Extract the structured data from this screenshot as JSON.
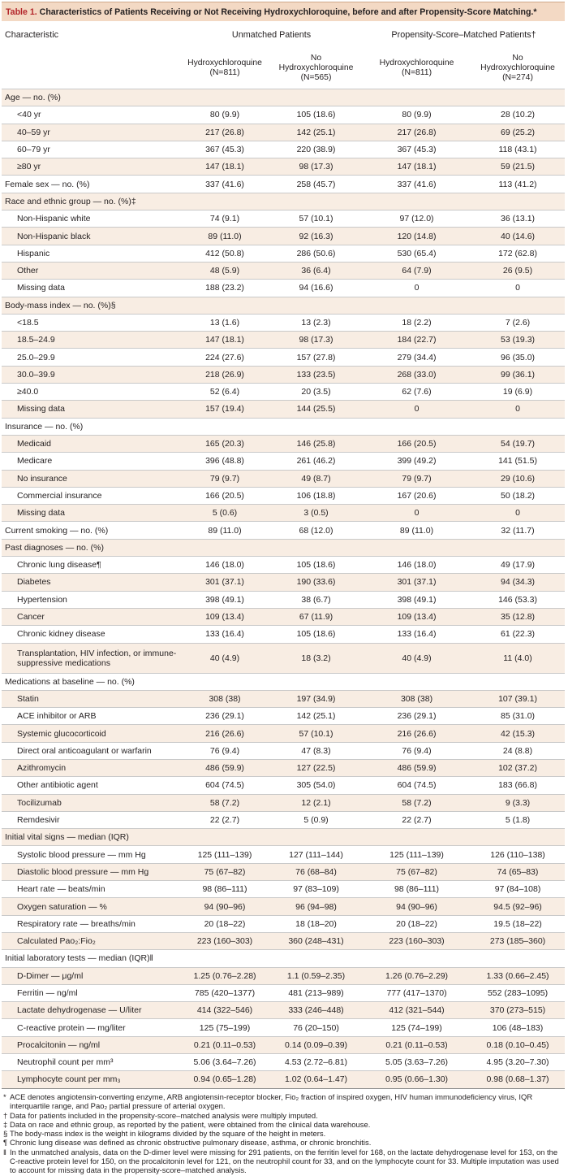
{
  "title": {
    "label": "Table 1.",
    "text": "Characteristics of Patients Receiving or Not Receiving Hydroxychloroquine, before and after Propensity-Score Matching.*"
  },
  "header": {
    "characteristic": "Characteristic",
    "unmatched": "Unmatched Patients",
    "matched": "Propensity-Score–Matched Patients†",
    "columns": [
      [
        "Hydroxychloroquine",
        "(N=811)"
      ],
      [
        "No",
        "Hydroxychloroquine",
        "(N=565)"
      ],
      [
        "Hydroxychloroquine",
        "(N=811)"
      ],
      [
        "No",
        "Hydroxychloroquine",
        "(N=274)"
      ]
    ]
  },
  "rows": [
    {
      "kind": "sec",
      "label": "Age — no. (%)",
      "values": [
        "",
        "",
        "",
        ""
      ]
    },
    {
      "kind": "item",
      "label": "<40 yr",
      "values": [
        "80 (9.9)",
        "105 (18.6)",
        "80 (9.9)",
        "28 (10.2)"
      ]
    },
    {
      "kind": "item",
      "label": "40–59 yr",
      "values": [
        "217 (26.8)",
        "142 (25.1)",
        "217 (26.8)",
        "69 (25.2)"
      ]
    },
    {
      "kind": "item",
      "label": "60–79 yr",
      "values": [
        "367 (45.3)",
        "220 (38.9)",
        "367 (45.3)",
        "118 (43.1)"
      ]
    },
    {
      "kind": "item",
      "label": "≥80 yr",
      "values": [
        "147 (18.1)",
        "98 (17.3)",
        "147 (18.1)",
        "59 (21.5)"
      ]
    },
    {
      "kind": "sec",
      "label": "Female sex — no. (%)",
      "values": [
        "337 (41.6)",
        "258 (45.7)",
        "337 (41.6)",
        "113 (41.2)"
      ]
    },
    {
      "kind": "sec",
      "label": "Race and ethnic group — no. (%)‡",
      "values": [
        "",
        "",
        "",
        ""
      ]
    },
    {
      "kind": "item",
      "label": "Non-Hispanic white",
      "values": [
        "74 (9.1)",
        "57 (10.1)",
        "97 (12.0)",
        "36 (13.1)"
      ]
    },
    {
      "kind": "item",
      "label": "Non-Hispanic black",
      "values": [
        "89 (11.0)",
        "92 (16.3)",
        "120 (14.8)",
        "40 (14.6)"
      ]
    },
    {
      "kind": "item",
      "label": "Hispanic",
      "values": [
        "412 (50.8)",
        "286 (50.6)",
        "530 (65.4)",
        "172 (62.8)"
      ]
    },
    {
      "kind": "item",
      "label": "Other",
      "values": [
        "48 (5.9)",
        "36 (6.4)",
        "64 (7.9)",
        "26 (9.5)"
      ]
    },
    {
      "kind": "item",
      "label": "Missing data",
      "values": [
        "188 (23.2)",
        "94 (16.6)",
        "0",
        "0"
      ]
    },
    {
      "kind": "sec",
      "label": "Body-mass index — no. (%)§",
      "values": [
        "",
        "",
        "",
        ""
      ]
    },
    {
      "kind": "item",
      "label": "<18.5",
      "values": [
        "13 (1.6)",
        "13 (2.3)",
        "18 (2.2)",
        "7 (2.6)"
      ]
    },
    {
      "kind": "item",
      "label": "18.5–24.9",
      "values": [
        "147 (18.1)",
        "98 (17.3)",
        "184 (22.7)",
        "53 (19.3)"
      ]
    },
    {
      "kind": "item",
      "label": "25.0–29.9",
      "values": [
        "224 (27.6)",
        "157 (27.8)",
        "279 (34.4)",
        "96 (35.0)"
      ]
    },
    {
      "kind": "item",
      "label": "30.0–39.9",
      "values": [
        "218 (26.9)",
        "133 (23.5)",
        "268 (33.0)",
        "99 (36.1)"
      ]
    },
    {
      "kind": "item",
      "label": "≥40.0",
      "values": [
        "52 (6.4)",
        "20 (3.5)",
        "62 (7.6)",
        "19 (6.9)"
      ]
    },
    {
      "kind": "item",
      "label": "Missing data",
      "values": [
        "157 (19.4)",
        "144 (25.5)",
        "0",
        "0"
      ]
    },
    {
      "kind": "sec",
      "label": "Insurance — no. (%)",
      "values": [
        "",
        "",
        "",
        ""
      ]
    },
    {
      "kind": "item",
      "label": "Medicaid",
      "values": [
        "165 (20.3)",
        "146 (25.8)",
        "166 (20.5)",
        "54 (19.7)"
      ]
    },
    {
      "kind": "item",
      "label": "Medicare",
      "values": [
        "396 (48.8)",
        "261 (46.2)",
        "399 (49.2)",
        "141 (51.5)"
      ]
    },
    {
      "kind": "item",
      "label": "No insurance",
      "values": [
        "79 (9.7)",
        "49 (8.7)",
        "79 (9.7)",
        "29 (10.6)"
      ]
    },
    {
      "kind": "item",
      "label": "Commercial insurance",
      "values": [
        "166 (20.5)",
        "106 (18.8)",
        "167 (20.6)",
        "50 (18.2)"
      ]
    },
    {
      "kind": "item",
      "label": "Missing data",
      "values": [
        "5 (0.6)",
        "3 (0.5)",
        "0",
        "0"
      ]
    },
    {
      "kind": "sec",
      "label": "Current smoking — no. (%)",
      "values": [
        "89 (11.0)",
        "68 (12.0)",
        "89 (11.0)",
        "32 (11.7)"
      ]
    },
    {
      "kind": "sec",
      "label": "Past diagnoses — no. (%)",
      "values": [
        "",
        "",
        "",
        ""
      ]
    },
    {
      "kind": "item",
      "label": "Chronic lung disease¶",
      "values": [
        "146 (18.0)",
        "105 (18.6)",
        "146 (18.0)",
        "49 (17.9)"
      ]
    },
    {
      "kind": "item",
      "label": "Diabetes",
      "values": [
        "301 (37.1)",
        "190 (33.6)",
        "301 (37.1)",
        "94 (34.3)"
      ]
    },
    {
      "kind": "item",
      "label": "Hypertension",
      "values": [
        "398 (49.1)",
        "38 (6.7)",
        "398 (49.1)",
        "146 (53.3)"
      ]
    },
    {
      "kind": "item",
      "label": "Cancer",
      "values": [
        "109 (13.4)",
        "67 (11.9)",
        "109 (13.4)",
        "35 (12.8)"
      ]
    },
    {
      "kind": "item",
      "label": "Chronic kidney disease",
      "values": [
        "133 (16.4)",
        "105 (18.6)",
        "133 (16.4)",
        "61 (22.3)"
      ]
    },
    {
      "kind": "item",
      "tall": true,
      "label": "Transplantation, HIV infection, or immune-suppressive medications",
      "values": [
        "40 (4.9)",
        "18 (3.2)",
        "40 (4.9)",
        "11 (4.0)"
      ]
    },
    {
      "kind": "sec",
      "label": "Medications at baseline — no. (%)",
      "values": [
        "",
        "",
        "",
        ""
      ]
    },
    {
      "kind": "item",
      "label": "Statin",
      "values": [
        "308 (38)",
        "197 (34.9)",
        "308 (38)",
        "107 (39.1)"
      ]
    },
    {
      "kind": "item",
      "label": "ACE inhibitor or ARB",
      "values": [
        "236 (29.1)",
        "142 (25.1)",
        "236 (29.1)",
        "85 (31.0)"
      ]
    },
    {
      "kind": "item",
      "label": "Systemic glucocorticoid",
      "values": [
        "216 (26.6)",
        "57 (10.1)",
        "216 (26.6)",
        "42 (15.3)"
      ]
    },
    {
      "kind": "item",
      "label": "Direct oral anticoagulant or warfarin",
      "values": [
        "76 (9.4)",
        "47 (8.3)",
        "76 (9.4)",
        "24 (8.8)"
      ]
    },
    {
      "kind": "item",
      "label": "Azithromycin",
      "values": [
        "486 (59.9)",
        "127 (22.5)",
        "486 (59.9)",
        "102 (37.2)"
      ]
    },
    {
      "kind": "item",
      "label": "Other antibiotic agent",
      "values": [
        "604 (74.5)",
        "305 (54.0)",
        "604 (74.5)",
        "183 (66.8)"
      ]
    },
    {
      "kind": "item",
      "label": "Tocilizumab",
      "values": [
        "58 (7.2)",
        "12 (2.1)",
        "58 (7.2)",
        "9 (3.3)"
      ]
    },
    {
      "kind": "item",
      "label": "Remdesivir",
      "values": [
        "22 (2.7)",
        "5 (0.9)",
        "22 (2.7)",
        "5 (1.8)"
      ]
    },
    {
      "kind": "sec",
      "label": "Initial vital signs — median (IQR)",
      "values": [
        "",
        "",
        "",
        ""
      ]
    },
    {
      "kind": "item",
      "label": "Systolic blood pressure — mm Hg",
      "values": [
        "125 (111–139)",
        "127 (111–144)",
        "125 (111–139)",
        "126 (110–138)"
      ]
    },
    {
      "kind": "item",
      "label": "Diastolic blood pressure — mm Hg",
      "values": [
        "75 (67–82)",
        "76 (68–84)",
        "75 (67–82)",
        "74 (65–83)"
      ]
    },
    {
      "kind": "item",
      "label": "Heart rate — beats/min",
      "values": [
        "98 (86–111)",
        "97 (83–109)",
        "98 (86–111)",
        "97 (84–108)"
      ]
    },
    {
      "kind": "item",
      "label": "Oxygen saturation — %",
      "values": [
        "94 (90–96)",
        "96 (94–98)",
        "94 (90–96)",
        "94.5 (92–96)"
      ]
    },
    {
      "kind": "item",
      "label": "Respiratory rate — breaths/min",
      "values": [
        "20 (18–22)",
        "18 (18–20)",
        "20 (18–22)",
        "19.5 (18–22)"
      ]
    },
    {
      "kind": "item",
      "label": "Calculated Pao₂:Fio₂",
      "values": [
        "223 (160–303)",
        "360 (248–431)",
        "223 (160–303)",
        "273 (185–360)"
      ]
    },
    {
      "kind": "sec",
      "label": "Initial laboratory tests — median (IQR)‖",
      "values": [
        "",
        "",
        "",
        ""
      ]
    },
    {
      "kind": "item",
      "label": "D-Dimer — μg/ml",
      "values": [
        "1.25 (0.76–2.28)",
        "1.1 (0.59–2.35)",
        "1.26 (0.76–2.29)",
        "1.33 (0.66–2.45)"
      ]
    },
    {
      "kind": "item",
      "label": "Ferritin — ng/ml",
      "values": [
        "785 (420–1377)",
        "481 (213–989)",
        "777 (417–1370)",
        "552 (283–1095)"
      ]
    },
    {
      "kind": "item",
      "label": "Lactate dehydrogenase — U/liter",
      "values": [
        "414 (322–546)",
        "333 (246–448)",
        "412 (321–544)",
        "370 (273–515)"
      ]
    },
    {
      "kind": "item",
      "label": "C-reactive protein — mg/liter",
      "values": [
        "125 (75–199)",
        "76 (20–150)",
        "125 (74–199)",
        "106 (48–183)"
      ]
    },
    {
      "kind": "item",
      "label": "Procalcitonin — ng/ml",
      "values": [
        "0.21 (0.11–0.53)",
        "0.14 (0.09–0.39)",
        "0.21 (0.11–0.53)",
        "0.18 (0.10–0.45)"
      ]
    },
    {
      "kind": "item",
      "label": "Neutrophil count per mm³",
      "values": [
        "5.06 (3.64–7.26)",
        "4.53 (2.72–6.81)",
        "5.05 (3.63–7.26)",
        "4.95 (3.20–7.30)"
      ]
    },
    {
      "kind": "item",
      "label": "Lymphocyte count per mm₃",
      "values": [
        "0.94 (0.65–1.28)",
        "1.02 (0.64–1.47)",
        "0.95 (0.66–1.30)",
        "0.98 (0.68–1.37)"
      ]
    }
  ],
  "footnotes": [
    {
      "mark": "*",
      "text": "ACE denotes angiotensin-converting enzyme, ARB angiotensin-receptor blocker, Fio₂ fraction of inspired oxygen, HIV human immunodeficiency virus, IQR interquartile range, and Pao₂ partial pressure of arterial oxygen."
    },
    {
      "mark": "†",
      "text": "Data for patients included in the propensity-score–matched analysis were multiply imputed."
    },
    {
      "mark": "‡",
      "text": "Data on race and ethnic group, as reported by the patient, were obtained from the clinical data warehouse."
    },
    {
      "mark": "§",
      "text": "The body-mass index is the weight in kilograms divided by the square of the height in meters."
    },
    {
      "mark": "¶",
      "text": "Chronic lung disease was defined as chronic obstructive pulmonary disease, asthma, or chronic bronchitis."
    },
    {
      "mark": "‖",
      "text": "In the unmatched analysis, data on the D-dimer level were missing for 291 patients, on the ferritin level for 168, on the lactate dehydrogenase level for 153, on the C-reactive protein level for 150, on the procalcitonin level for 121, on the neutrophil count for 33, and on the lymphocyte count for 33. Multiple imputation was used to account for missing data in the propensity-score–matched analysis."
    }
  ]
}
